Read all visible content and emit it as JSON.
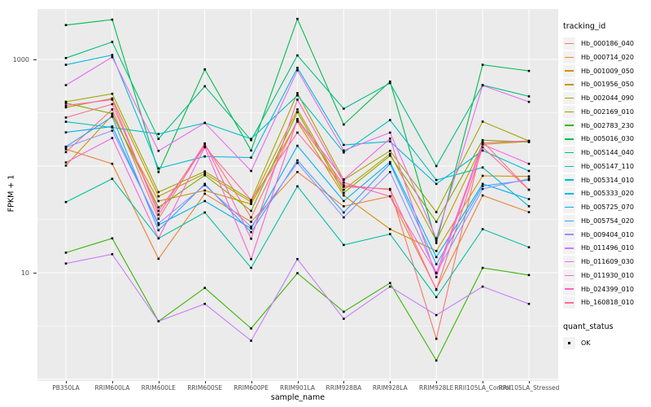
{
  "figure": {
    "background": "#FFFFFF",
    "panel_background": "#EBEBEB",
    "grid_color": "#FFFFFF",
    "tick_color": "#333333",
    "tick_label_color": "#4D4D4D"
  },
  "axes": {
    "x": {
      "title": "sample_name"
    },
    "y": {
      "title": "FPKM + 1",
      "scale": "log10",
      "ticks": [
        {
          "label": "1000",
          "value": 1000
        },
        {
          "label": "10",
          "value": 10
        }
      ]
    }
  },
  "legends": {
    "tracking": {
      "title": "tracking_id"
    },
    "quant": {
      "title": "quant_status",
      "item_label": "OK",
      "marker": "black-square"
    }
  },
  "chart_data": {
    "type": "line",
    "title": "",
    "xlabel": "sample_name",
    "ylabel": "FPKM + 1",
    "y_scale": "log10",
    "ylim": [
      1,
      3000
    ],
    "grid": true,
    "legend_position": "right",
    "legend_title": "tracking_id",
    "point_marker": {
      "shape": "square",
      "color": "#000000",
      "legend_title": "quant_status",
      "legend_label": "OK"
    },
    "categories": [
      "PB350LA",
      "RRIM600LA",
      "RRIM600LE",
      "RRIM600SE",
      "RRIM600PE",
      "RRIM901LA",
      "RRIM928BA",
      "RRIM928LA",
      "RRIM928LE",
      "RRII105LA_Control",
      "RRII105LA_Stressed"
    ],
    "series": [
      {
        "name": "Hb_000186_040",
        "color": "#F8766D",
        "values": [
          135,
          340,
          32,
          160,
          33,
          270,
          66,
          60,
          2.4,
          170,
          60
        ]
      },
      {
        "name": "Hb_000714_020",
        "color": "#EA8331",
        "values": [
          144,
          105,
          13.5,
          55,
          30,
          88,
          42,
          52,
          7.0,
          53,
          37
        ]
      },
      {
        "name": "Hb_001009_050",
        "color": "#D89000",
        "values": [
          101,
          300,
          47,
          59,
          44,
          261,
          53,
          25.6,
          16,
          81,
          80
        ]
      },
      {
        "name": "Hb_001956_050",
        "color": "#C09B00",
        "values": [
          355,
          430,
          52,
          85,
          46,
          340,
          60,
          130,
          20,
          160,
          170
        ]
      },
      {
        "name": "Hb_002044_090",
        "color": "#A3A500",
        "values": [
          401,
          476,
          57,
          89,
          48,
          483,
          74,
          139,
          37,
          261,
          172
        ]
      },
      {
        "name": "Hb_002169_010",
        "color": "#7CAE00",
        "values": [
          390,
          310,
          41,
          82,
          38,
          320,
          56,
          125,
          30,
          175,
          168
        ]
      },
      {
        "name": "Hb_002783_230",
        "color": "#39B600",
        "values": [
          15.4,
          21,
          3.5,
          7.2,
          3.0,
          9.9,
          4.3,
          8.0,
          1.5,
          11.1,
          9.5
        ]
      },
      {
        "name": "Hb_005016_030",
        "color": "#00BB4E",
        "values": [
          2100,
          2360,
          88,
          805,
          140,
          2400,
          245,
          620,
          19,
          890,
          780
        ]
      },
      {
        "name": "Hb_005144_040",
        "color": "#00BF7D",
        "values": [
          1030,
          1460,
          180,
          560,
          175,
          1090,
          345,
          600,
          100,
          575,
          450
        ]
      },
      {
        "name": "Hb_005147_110",
        "color": "#00C1A3",
        "values": [
          46,
          76,
          21,
          36.7,
          11.1,
          64.6,
          18.2,
          23,
          5.9,
          25.6,
          17.3
        ]
      },
      {
        "name": "Hb_005314_010",
        "color": "#00BFC4",
        "values": [
          260,
          230,
          200,
          254,
          180,
          460,
          134,
          270,
          74,
          97,
          42
        ]
      },
      {
        "name": "Hb_005333_020",
        "color": "#00BADE",
        "values": [
          890,
          1100,
          95,
          123,
          120,
          835,
          158,
          170,
          68,
          140,
          90
        ]
      },
      {
        "name": "Hb_005725_070",
        "color": "#00B0F6",
        "values": [
          207,
          235,
          28,
          47,
          26,
          155,
          47,
          109,
          14,
          68,
          49
        ]
      },
      {
        "name": "Hb_005754_020",
        "color": "#35A2FF",
        "values": [
          152,
          290,
          25,
          68,
          24,
          113,
          36.7,
          105,
          12,
          65,
          74
        ]
      },
      {
        "name": "Hb_009404_010",
        "color": "#9590FF",
        "values": [
          150,
          215,
          29,
          66,
          27,
          107,
          33,
          88,
          10,
          61,
          76
        ]
      },
      {
        "name": "Hb_011496_010",
        "color": "#C77CFF",
        "values": [
          12.2,
          14.9,
          3.5,
          5.1,
          2.3,
          13.4,
          3.7,
          7.4,
          4.0,
          7.4,
          5.1
        ]
      },
      {
        "name": "Hb_011609_030",
        "color": "#E76BF3",
        "values": [
          574,
          1050,
          139,
          254,
          90,
          790,
          140,
          206,
          21,
          570,
          400
        ]
      },
      {
        "name": "Hb_011930_010",
        "color": "#FA62DB",
        "values": [
          108,
          183,
          21,
          150,
          13.4,
          276,
          75,
          181,
          9.1,
          160,
          105
        ]
      },
      {
        "name": "Hb_024399_010",
        "color": "#FF62BC",
        "values": [
          370,
          420,
          35,
          163,
          20.8,
          420,
          70,
          52,
          9.9,
          165,
          172
        ]
      },
      {
        "name": "Hb_160818_010",
        "color": "#FF6A98",
        "values": [
          285,
          380,
          38,
          152,
          48,
          206,
          64,
          61,
          6.9,
          150,
          60
        ]
      }
    ]
  }
}
